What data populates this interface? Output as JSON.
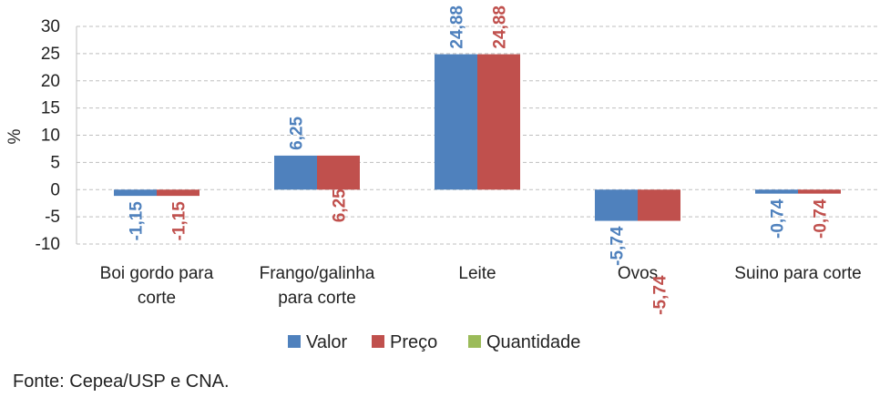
{
  "chart_data": {
    "type": "bar",
    "ylabel": "%",
    "ylim": [
      -10,
      30
    ],
    "yticks": [
      30,
      25,
      20,
      15,
      10,
      5,
      0,
      -5,
      -10
    ],
    "grid": true,
    "legend": "bottom",
    "categories": [
      [
        "Boi gordo para",
        "corte"
      ],
      [
        "Frango/galinha",
        "para corte"
      ],
      [
        "Leite"
      ],
      [
        "Ovos"
      ],
      [
        "Suino para corte"
      ]
    ],
    "series": [
      {
        "name": "Valor",
        "color": "#4f81bd",
        "values": [
          -1.15,
          6.25,
          24.88,
          -5.74,
          -0.74
        ],
        "labels": [
          "-1,15",
          "6,25",
          "24,88",
          "-5,74",
          "-0,74"
        ]
      },
      {
        "name": "Preço",
        "color": "#c0504d",
        "values": [
          -1.15,
          6.25,
          24.88,
          -5.74,
          -0.74
        ],
        "labels": [
          "-1,15",
          "6,25",
          "24,88",
          "-5,74",
          "-0,74"
        ]
      },
      {
        "name": "Quantidade",
        "color": "#9bbb59",
        "values": [
          0,
          0,
          0,
          0,
          0
        ],
        "labels": []
      }
    ]
  },
  "source": "Fonte: Cepea/USP e CNA."
}
